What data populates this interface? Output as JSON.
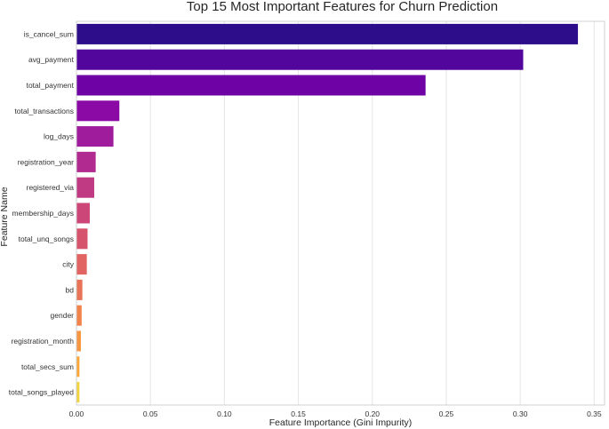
{
  "chart_data": {
    "type": "bar",
    "orientation": "horizontal",
    "title": "Top 15 Most Important Features for Churn Prediction",
    "xlabel": "Feature Importance (Gini Impurity)",
    "ylabel": "Feature Name",
    "xlim": [
      0,
      0.357
    ],
    "xticks": [
      0.0,
      0.05,
      0.1,
      0.15,
      0.2,
      0.25,
      0.3,
      0.35
    ],
    "xtick_labels": [
      "0.00",
      "0.05",
      "0.10",
      "0.15",
      "0.20",
      "0.25",
      "0.30",
      "0.35"
    ],
    "grid": true,
    "categories": [
      "is_cancel_sum",
      "avg_payment",
      "total_payment",
      "total_transactions",
      "log_days",
      "registration_year",
      "registered_via",
      "membership_days",
      "total_unq_songs",
      "city",
      "bd",
      "gender",
      "registration_month",
      "total_secs_sum",
      "total_songs_played"
    ],
    "values": [
      0.339,
      0.302,
      0.236,
      0.029,
      0.025,
      0.013,
      0.012,
      0.009,
      0.0075,
      0.007,
      0.004,
      0.0035,
      0.003,
      0.002,
      0.002
    ],
    "colors": [
      "#2d0d89",
      "#52069b",
      "#6e02a5",
      "#8b0aa5",
      "#9f1c9c",
      "#b12a90",
      "#c03a83",
      "#cc4778",
      "#d6556d",
      "#e16462",
      "#e97356",
      "#f1834b",
      "#f89540",
      "#fca636",
      "#f1d33a"
    ]
  }
}
